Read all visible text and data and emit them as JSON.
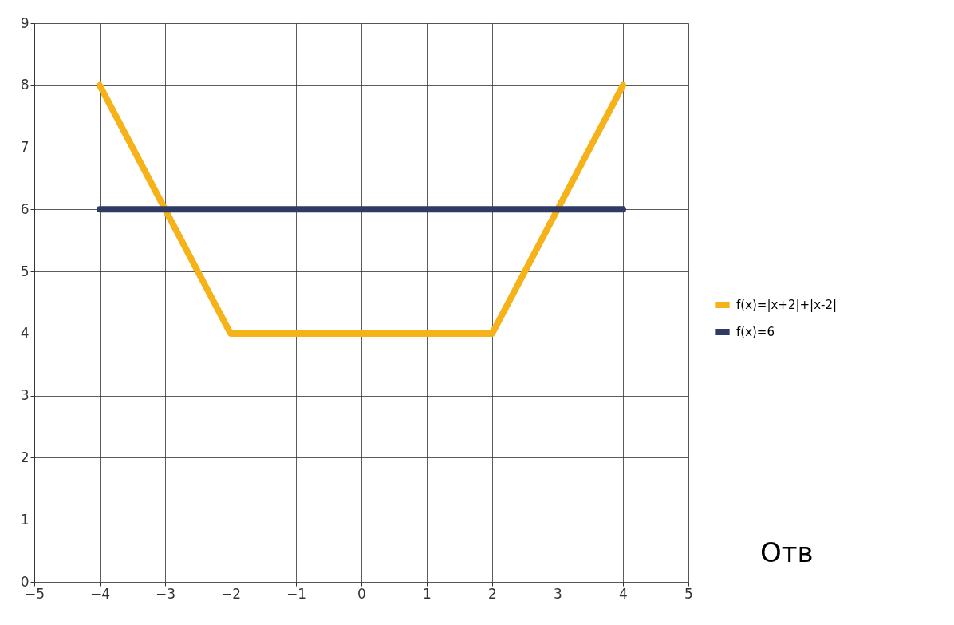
{
  "chart_data": {
    "type": "line",
    "xlim": [
      -5,
      5
    ],
    "xticks": [
      -5,
      -4,
      -3,
      -2,
      -1,
      0,
      1,
      2,
      3,
      4,
      5
    ],
    "ylim": [
      0,
      9
    ],
    "yticks": [
      0,
      1,
      2,
      3,
      4,
      5,
      6,
      7,
      8,
      9
    ],
    "grid": true,
    "legend": "right",
    "marker": "none",
    "line_style": "solid",
    "series": [
      {
        "name": "f(x)=|x+2|+|x-2|",
        "color": "#f5b319",
        "x": [
          -4,
          -2,
          2,
          4
        ],
        "values": [
          8,
          4,
          4,
          8
        ]
      },
      {
        "name": "f(x)=6",
        "color": "#2f3b63",
        "x": [
          -4,
          4
        ],
        "values": [
          6,
          6
        ]
      }
    ],
    "annotations": [
      "Отв"
    ]
  }
}
